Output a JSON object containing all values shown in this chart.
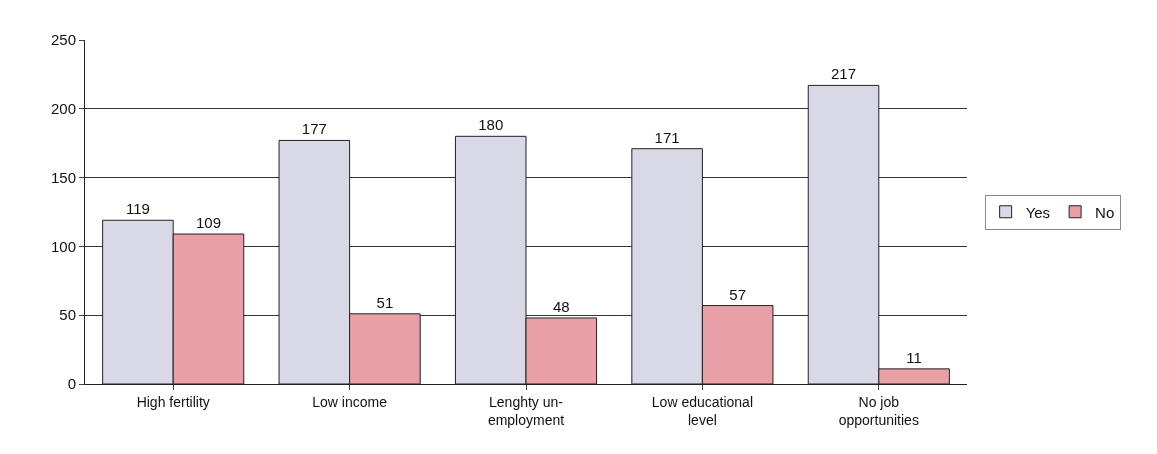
{
  "chart_data": {
    "type": "bar",
    "categories": [
      "High fertility",
      "Low income",
      "Lenghty un-\nemployment",
      "Low educational\nlevel",
      "No job\nopportunities"
    ],
    "series": [
      {
        "name": "Yes",
        "color": "#d8d8e6",
        "values": [
          119,
          177,
          180,
          171,
          217
        ]
      },
      {
        "name": "No",
        "color": "#e8a0a6",
        "values": [
          109,
          51,
          48,
          57,
          11
        ]
      }
    ],
    "ylim": [
      0,
      250
    ],
    "yticks": [
      0,
      50,
      100,
      150,
      200,
      250
    ],
    "grid": "y",
    "legend": "right",
    "data_labels": true
  }
}
